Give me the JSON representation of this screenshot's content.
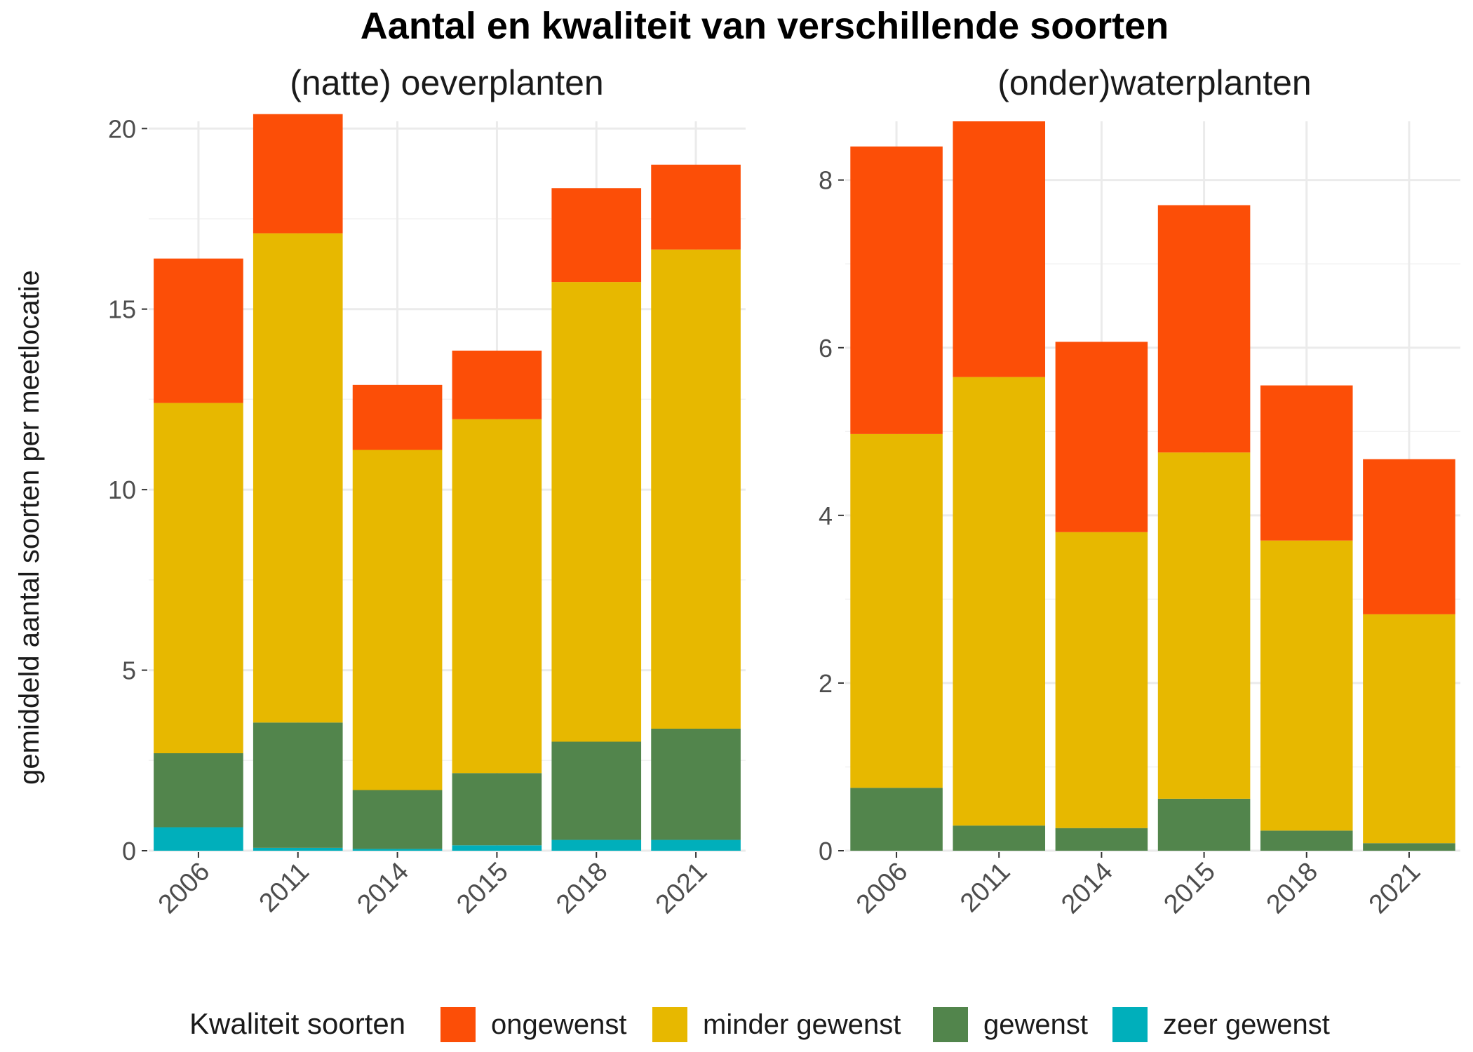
{
  "chart_data": {
    "type": "bar",
    "stacked": true,
    "title": "Aantal en kwaliteit van verschillende soorten",
    "ylabel": "gemiddeld aantal soorten per meetlocatie",
    "xlabel": "",
    "grid": true,
    "legend": {
      "position": "bottom",
      "title": "Kwaliteit soorten",
      "entries": [
        "ongewenst",
        "minder gewenst",
        "gewenst",
        "zeer gewenst"
      ]
    },
    "colors": {
      "ongewenst": "#FC4E07",
      "minder gewenst": "#E7B800",
      "gewenst": "#52854C",
      "zeer gewenst": "#00AFBB"
    },
    "panels": [
      {
        "title": "(natte) oeverplanten",
        "categories": [
          "2006",
          "2011",
          "2014",
          "2015",
          "2018",
          "2021"
        ],
        "ylim": [
          0,
          20.2
        ],
        "yticks": [
          "0",
          "5",
          "10",
          "15",
          "20"
        ],
        "series": [
          {
            "name": "zeer gewenst",
            "values": [
              0.65,
              0.08,
              0.05,
              0.15,
              0.3,
              0.3
            ]
          },
          {
            "name": "gewenst",
            "values": [
              2.05,
              3.47,
              1.63,
              2.0,
              2.72,
              3.08
            ]
          },
          {
            "name": "minder gewenst",
            "values": [
              9.7,
              13.55,
              9.42,
              9.8,
              12.73,
              13.27
            ]
          },
          {
            "name": "ongewenst",
            "values": [
              4.0,
              3.3,
              1.8,
              1.9,
              2.6,
              2.35
            ]
          }
        ]
      },
      {
        "title": "(onder)waterplanten",
        "categories": [
          "2006",
          "2011",
          "2014",
          "2015",
          "2018",
          "2021"
        ],
        "ylim": [
          0,
          8.7
        ],
        "yticks": [
          "0",
          "2",
          "4",
          "6",
          "8"
        ],
        "series": [
          {
            "name": "zeer gewenst",
            "values": [
              0,
              0,
              0,
              0,
              0,
              0
            ]
          },
          {
            "name": "gewenst",
            "values": [
              0.75,
              0.3,
              0.27,
              0.62,
              0.24,
              0.09
            ]
          },
          {
            "name": "minder gewenst",
            "values": [
              4.22,
              5.35,
              3.53,
              4.13,
              3.46,
              2.73
            ]
          },
          {
            "name": "ongewenst",
            "values": [
              3.43,
              3.05,
              2.27,
              2.95,
              1.85,
              1.85
            ]
          }
        ]
      }
    ]
  }
}
